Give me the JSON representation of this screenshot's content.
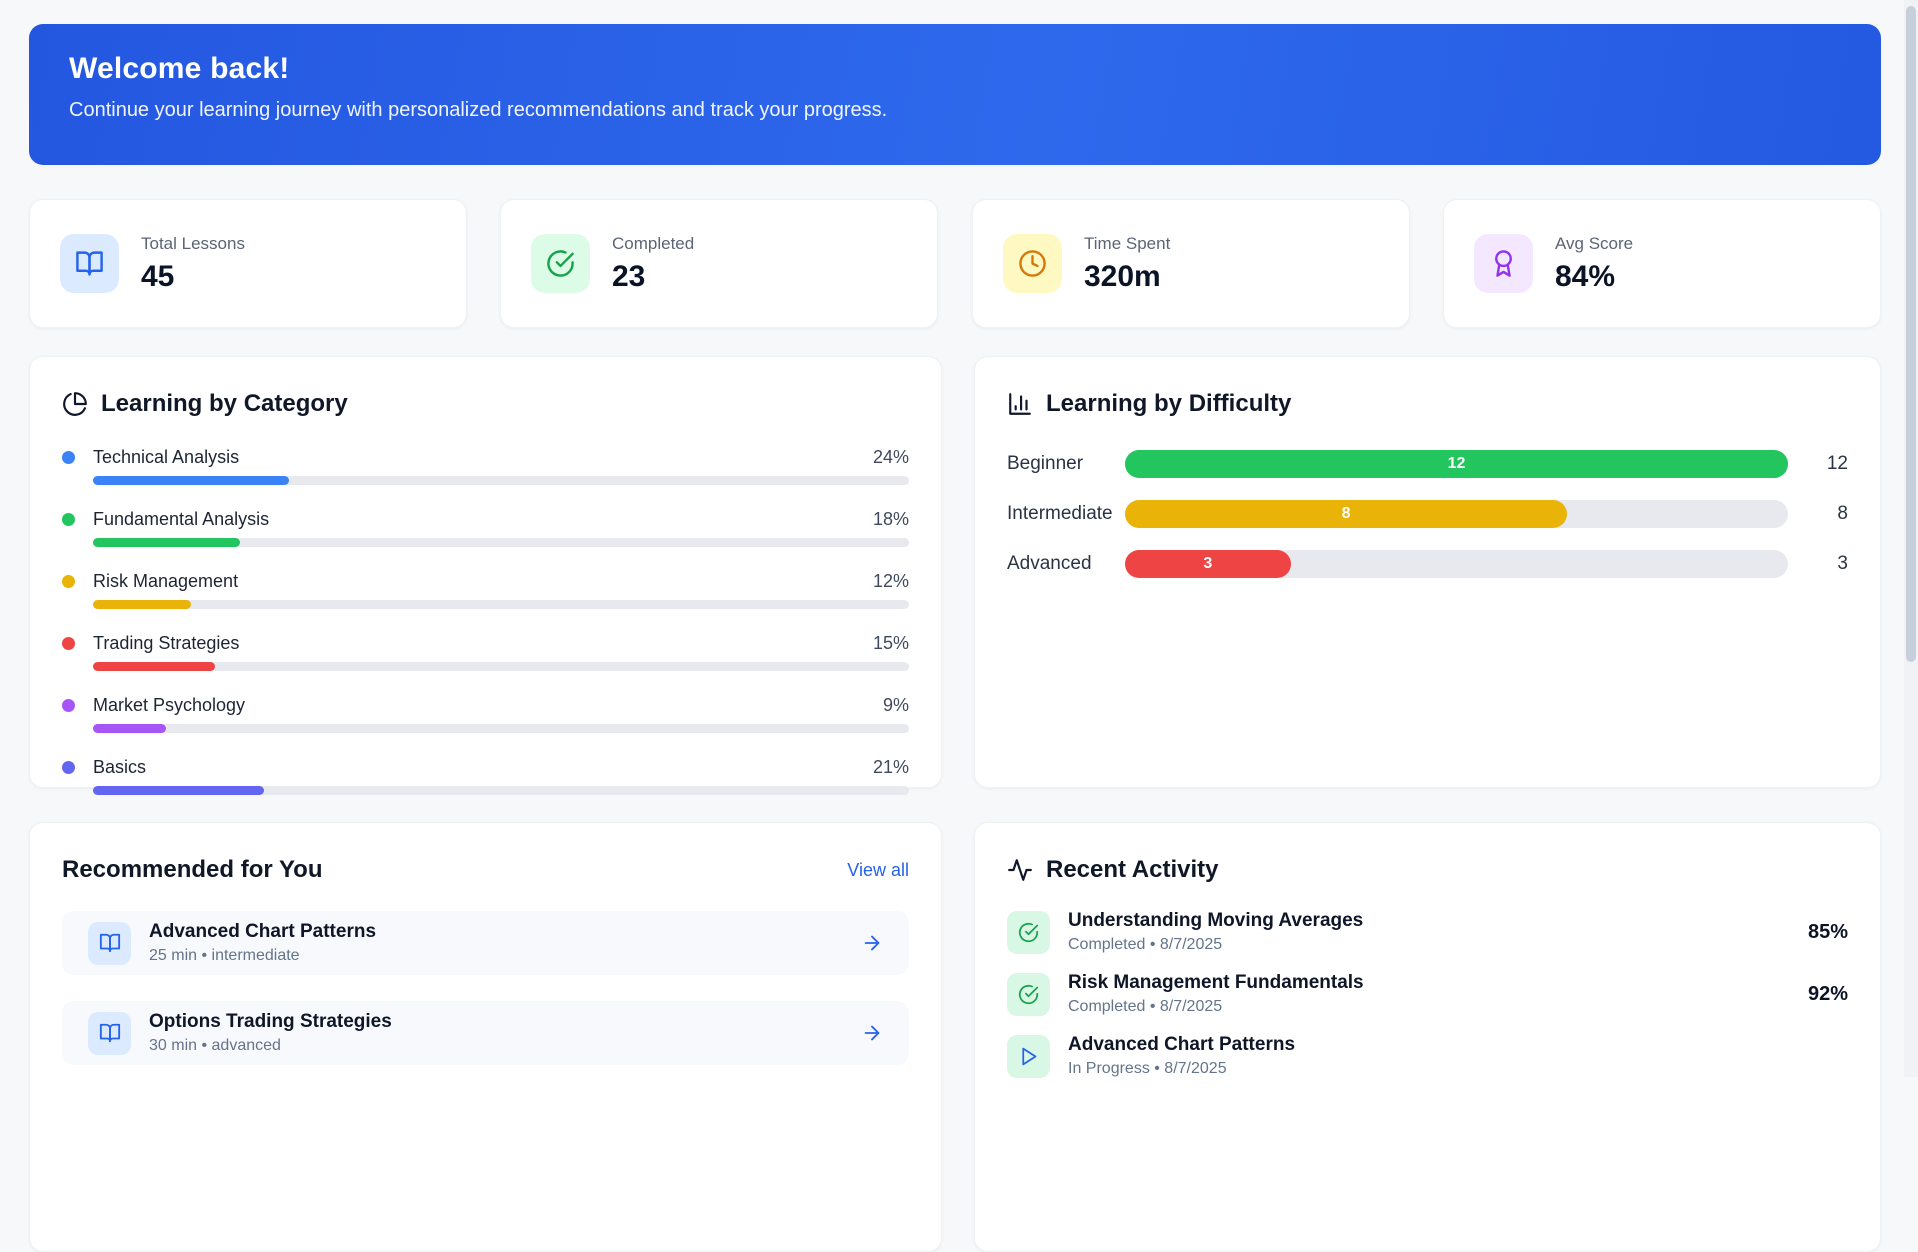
{
  "banner": {
    "title": "Welcome back!",
    "subtitle": "Continue your learning journey with personalized recommendations and track your progress.",
    "bg_color": "#2563eb"
  },
  "stats": {
    "items": [
      {
        "label": "Total Lessons",
        "value": "45",
        "icon": "book-open-icon",
        "icon_color": "#2563eb",
        "icon_bg": "#dbeafe"
      },
      {
        "label": "Completed",
        "value": "23",
        "icon": "check-circle-icon",
        "icon_color": "#16a34a",
        "icon_bg": "#dcfce7"
      },
      {
        "label": "Time Spent",
        "value": "320m",
        "icon": "clock-icon",
        "icon_color": "#d97706",
        "icon_bg": "#fef9c3"
      },
      {
        "label": "Avg Score",
        "value": "84%",
        "icon": "award-icon",
        "icon_color": "#9333ea",
        "icon_bg": "#f3e8ff"
      }
    ]
  },
  "category_panel": {
    "title": "Learning by Category",
    "chart_type": "bar",
    "items": [
      {
        "label": "Technical Analysis",
        "pct": 24,
        "pct_label": "24%",
        "color": "#3b82f6"
      },
      {
        "label": "Fundamental Analysis",
        "pct": 18,
        "pct_label": "18%",
        "color": "#22c55e"
      },
      {
        "label": "Risk Management",
        "pct": 12,
        "pct_label": "12%",
        "color": "#eab308"
      },
      {
        "label": "Trading Strategies",
        "pct": 15,
        "pct_label": "15%",
        "color": "#ef4444"
      },
      {
        "label": "Market Psychology",
        "pct": 9,
        "pct_label": "9%",
        "color": "#a855f7"
      },
      {
        "label": "Basics",
        "pct": 21,
        "pct_label": "21%",
        "color": "#6366f1"
      }
    ]
  },
  "difficulty_panel": {
    "title": "Learning by Difficulty",
    "chart_type": "bar",
    "max": 12,
    "rows": [
      {
        "label": "Beginner",
        "value": 12,
        "fill_pct": 100,
        "color": "#22c55e"
      },
      {
        "label": "Intermediate",
        "value": 8,
        "fill_pct": 66.7,
        "color": "#eab308"
      },
      {
        "label": "Advanced",
        "value": 3,
        "fill_pct": 25,
        "color": "#ef4444"
      }
    ]
  },
  "recommended": {
    "title": "Recommended for You",
    "view_all": "View all",
    "items": [
      {
        "title": "Advanced Chart Patterns",
        "meta": "25 min • intermediate"
      },
      {
        "title": "Options Trading Strategies",
        "meta": "30 min • advanced"
      }
    ]
  },
  "activity": {
    "title": "Recent Activity",
    "items": [
      {
        "title": "Understanding Moving Averages",
        "meta": "Completed • 8/7/2025",
        "score": "85%",
        "status": "completed"
      },
      {
        "title": "Risk Management Fundamentals",
        "meta": "Completed • 8/7/2025",
        "score": "92%",
        "status": "completed"
      },
      {
        "title": "Advanced Chart Patterns",
        "meta": "In Progress • 8/7/2025",
        "score": "",
        "status": "in-progress"
      }
    ]
  }
}
